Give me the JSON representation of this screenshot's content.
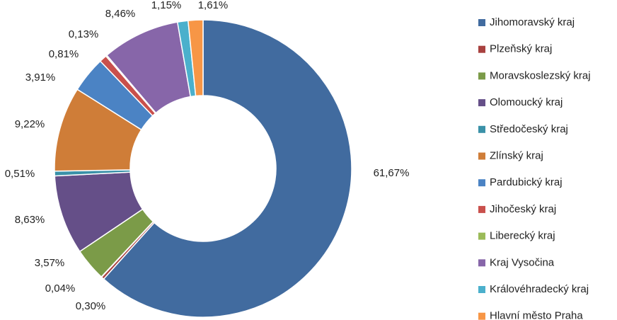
{
  "chart_data": {
    "type": "donut",
    "categories": [
      "Jihomoravský kraj",
      "Plzeňský kraj",
      null,
      "Moravskoslezský kraj",
      "Olomoucký kraj",
      "Středočeský kraj",
      "Zlínský kraj",
      "Pardubický kraj",
      "Jihočeský kraj",
      "Liberecký kraj",
      "Kraj Vysočina",
      "Královéhradecký kraj",
      "Hlavní město Praha"
    ],
    "values": [
      61.67,
      0.3,
      0.04,
      3.57,
      8.63,
      0.51,
      9.22,
      3.91,
      0.81,
      0.13,
      8.46,
      1.15,
      1.61
    ],
    "value_labels": [
      "61,67%",
      "0,30%",
      "0,04%",
      "3,57%",
      "8,63%",
      "0,51%",
      "9,22%",
      "3,91%",
      "0,81%",
      "0,13%",
      "8,46%",
      "1,15%",
      "1,61%"
    ],
    "colors": [
      "#416b9f",
      "#a8413f",
      "#2e4f78",
      "#7b9b48",
      "#654f88",
      "#3a91a8",
      "#cf7d38",
      "#4b83c4",
      "#c9504c",
      "#9bbb59",
      "#8766a9",
      "#4bb0cc",
      "#f79646"
    ],
    "legend": "right"
  }
}
